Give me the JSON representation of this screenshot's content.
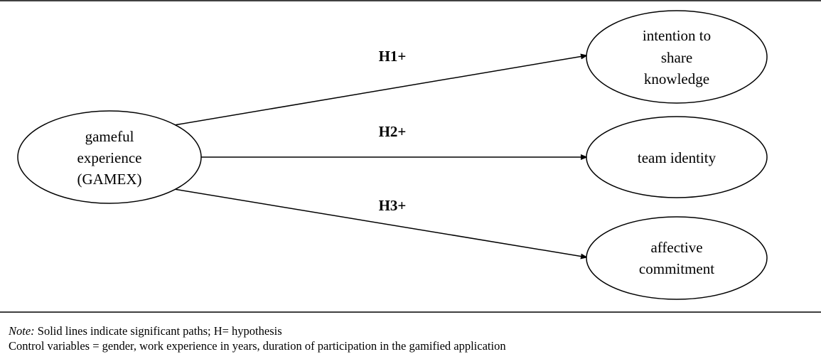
{
  "nodes": {
    "gamex": {
      "lines": [
        "gameful",
        "experience",
        "(GAMEX)"
      ]
    },
    "intention": {
      "lines": [
        "intention to",
        "share",
        "knowledge"
      ]
    },
    "team": {
      "lines": [
        "team identity"
      ]
    },
    "affective": {
      "lines": [
        "affective",
        "commitment"
      ]
    }
  },
  "paths": {
    "h1": {
      "label": "H1+",
      "from": "gamex",
      "to": "intention"
    },
    "h2": {
      "label": "H2+",
      "from": "gamex",
      "to": "team"
    },
    "h3": {
      "label": "H3+",
      "from": "gamex",
      "to": "affective"
    }
  },
  "note": {
    "prefix": "Note:",
    "line1": " Solid lines indicate significant paths; H= hypothesis",
    "line2": "Control variables = gender, work experience in years, duration of participation in the gamified application"
  }
}
